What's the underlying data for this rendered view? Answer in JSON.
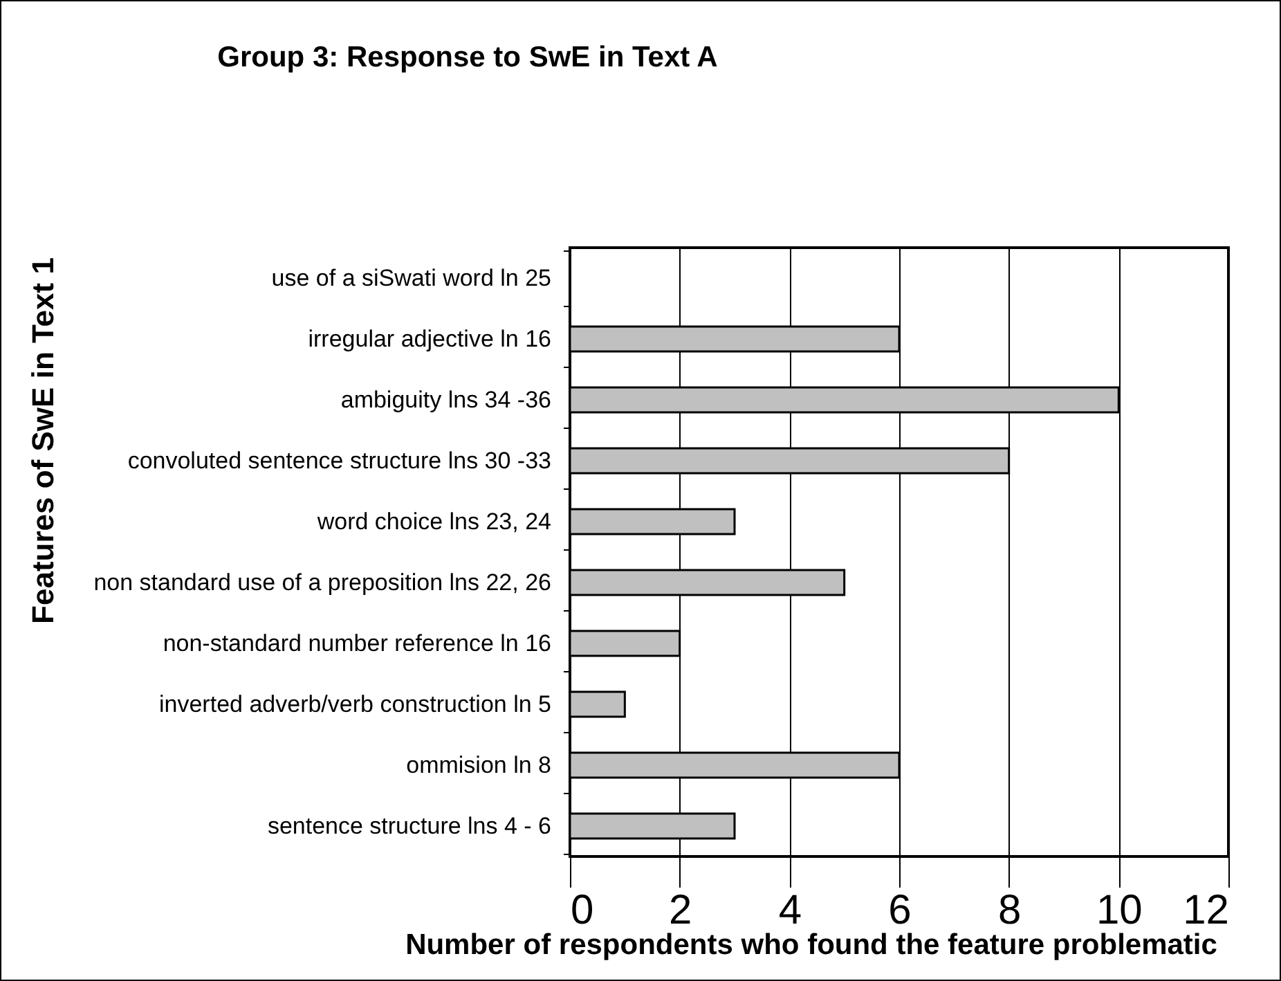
{
  "chart_data": {
    "type": "bar",
    "orientation": "horizontal",
    "title": "Group 3: Response to SwE in Text A",
    "xlabel": "Number of respondents who found the feature problematic",
    "ylabel": "Features of SwE in Text 1",
    "categories": [
      "use of a siSwati word ln 25",
      "irregular adjective ln 16",
      "ambiguity lns 34 -36",
      "convoluted sentence structure lns 30 -33",
      "word choice lns 23, 24",
      "non standard use of a preposition lns 22, 26",
      "non-standard number reference ln 16",
      "inverted adverb/verb construction ln 5",
      "ommision ln 8",
      "sentence structure lns 4 - 6"
    ],
    "values": [
      0,
      6,
      10,
      8,
      3,
      5,
      2,
      1,
      6,
      3
    ],
    "color": "#c0c0c0",
    "xlim": [
      0,
      12
    ],
    "xticks": [
      0,
      2,
      4,
      6,
      8,
      10,
      12
    ],
    "grid": "x"
  }
}
